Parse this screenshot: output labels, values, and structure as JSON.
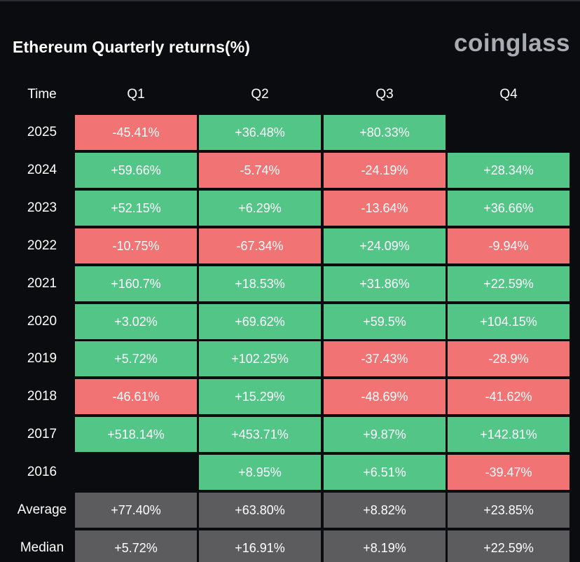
{
  "title": "Ethereum Quarterly returns(%)",
  "brand": "coinglass",
  "colors": {
    "positive": "#52c587",
    "negative": "#f27373",
    "stat": "#5c5c5f",
    "background": "#0b0c10"
  },
  "chart_data": {
    "type": "table",
    "row_header": "Time",
    "columns": [
      "Q1",
      "Q2",
      "Q3",
      "Q4"
    ],
    "rows": [
      {
        "label": "2025",
        "values": [
          "-45.41%",
          "+36.48%",
          "+80.33%",
          ""
        ]
      },
      {
        "label": "2024",
        "values": [
          "+59.66%",
          "-5.74%",
          "-24.19%",
          "+28.34%"
        ]
      },
      {
        "label": "2023",
        "values": [
          "+52.15%",
          "+6.29%",
          "-13.64%",
          "+36.66%"
        ]
      },
      {
        "label": "2022",
        "values": [
          "-10.75%",
          "-67.34%",
          "+24.09%",
          "-9.94%"
        ]
      },
      {
        "label": "2021",
        "values": [
          "+160.7%",
          "+18.53%",
          "+31.86%",
          "+22.59%"
        ]
      },
      {
        "label": "2020",
        "values": [
          "+3.02%",
          "+69.62%",
          "+59.5%",
          "+104.15%"
        ]
      },
      {
        "label": "2019",
        "values": [
          "+5.72%",
          "+102.25%",
          "-37.43%",
          "-28.9%"
        ]
      },
      {
        "label": "2018",
        "values": [
          "-46.61%",
          "+15.29%",
          "-48.69%",
          "-41.62%"
        ]
      },
      {
        "label": "2017",
        "values": [
          "+518.14%",
          "+453.71%",
          "+9.87%",
          "+142.81%"
        ]
      },
      {
        "label": "2016",
        "values": [
          "",
          "+8.95%",
          "+6.51%",
          "-39.47%"
        ]
      }
    ],
    "summary_rows": [
      {
        "label": "Average",
        "values": [
          "+77.40%",
          "+63.80%",
          "+8.82%",
          "+23.85%"
        ]
      },
      {
        "label": "Median",
        "values": [
          "+5.72%",
          "+16.91%",
          "+8.19%",
          "+22.59%"
        ]
      }
    ]
  }
}
